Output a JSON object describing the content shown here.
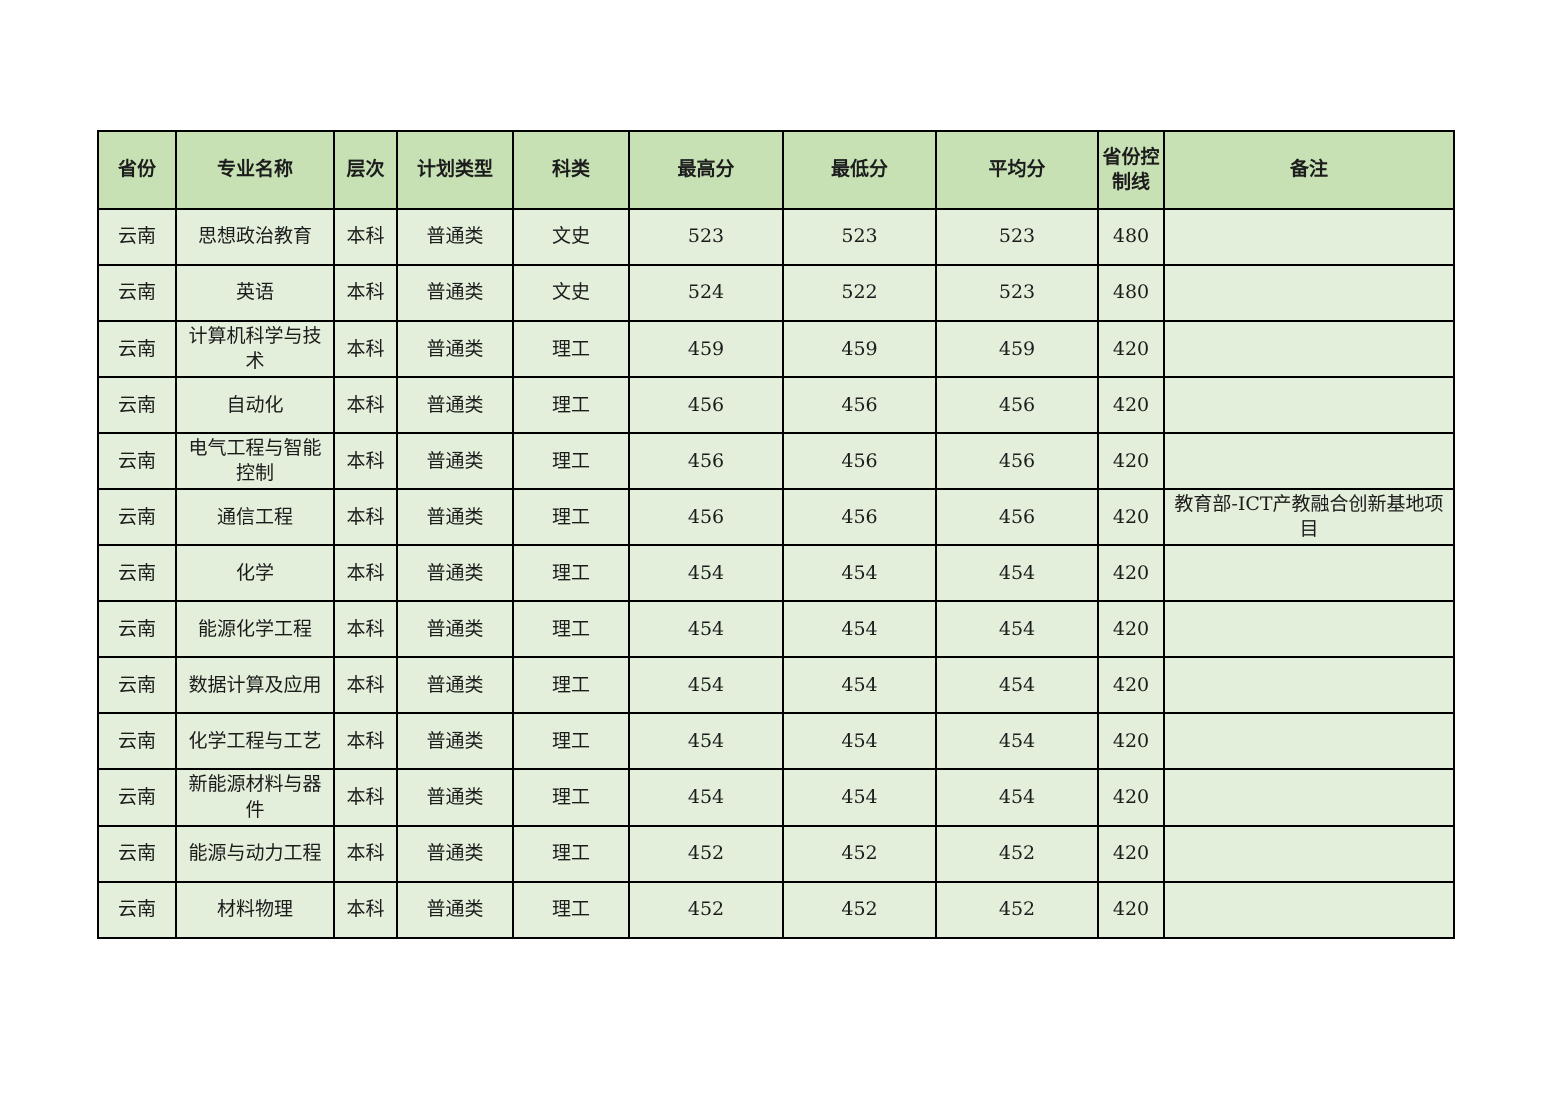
{
  "page": {
    "background": "#ffffff",
    "description_colors": {
      "header_bg": "#c7e1b5",
      "row_bg": "#e3efda",
      "border": "#000000",
      "text": "#1c1c1c"
    }
  },
  "table": {
    "columns": [
      "省份",
      "专业名称",
      "层次",
      "计划类型",
      "科类",
      "最高分",
      "最低分",
      "平均分",
      "省份控制线",
      "备注"
    ],
    "rows": [
      [
        "云南",
        "思想政治教育",
        "本科",
        "普通类",
        "文史",
        "523",
        "523",
        "523",
        "480",
        ""
      ],
      [
        "云南",
        "英语",
        "本科",
        "普通类",
        "文史",
        "524",
        "522",
        "523",
        "480",
        ""
      ],
      [
        "云南",
        "计算机科学与技术",
        "本科",
        "普通类",
        "理工",
        "459",
        "459",
        "459",
        "420",
        ""
      ],
      [
        "云南",
        "自动化",
        "本科",
        "普通类",
        "理工",
        "456",
        "456",
        "456",
        "420",
        ""
      ],
      [
        "云南",
        "电气工程与智能控制",
        "本科",
        "普通类",
        "理工",
        "456",
        "456",
        "456",
        "420",
        ""
      ],
      [
        "云南",
        "通信工程",
        "本科",
        "普通类",
        "理工",
        "456",
        "456",
        "456",
        "420",
        "教育部-ICT产教融合创新基地项目"
      ],
      [
        "云南",
        "化学",
        "本科",
        "普通类",
        "理工",
        "454",
        "454",
        "454",
        "420",
        ""
      ],
      [
        "云南",
        "能源化学工程",
        "本科",
        "普通类",
        "理工",
        "454",
        "454",
        "454",
        "420",
        ""
      ],
      [
        "云南",
        "数据计算及应用",
        "本科",
        "普通类",
        "理工",
        "454",
        "454",
        "454",
        "420",
        ""
      ],
      [
        "云南",
        "化学工程与工艺",
        "本科",
        "普通类",
        "理工",
        "454",
        "454",
        "454",
        "420",
        ""
      ],
      [
        "云南",
        "新能源材料与器件",
        "本科",
        "普通类",
        "理工",
        "454",
        "454",
        "454",
        "420",
        ""
      ],
      [
        "云南",
        "能源与动力工程",
        "本科",
        "普通类",
        "理工",
        "452",
        "452",
        "452",
        "420",
        ""
      ],
      [
        "云南",
        "材料物理",
        "本科",
        "普通类",
        "理工",
        "452",
        "452",
        "452",
        "420",
        ""
      ]
    ]
  }
}
